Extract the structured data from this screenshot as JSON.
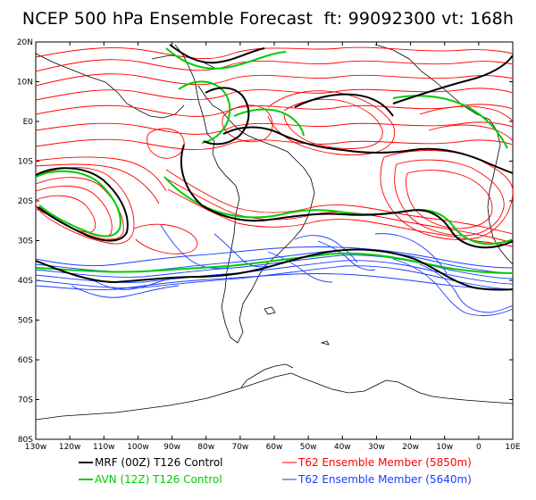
{
  "title": "NCEP 500 hPa Ensemble Forecast  ft: 99092300 vt: 168h",
  "latitude_labels": [
    "20N",
    "10N",
    "E0",
    "10S",
    "20S",
    "30S",
    "40S",
    "50S",
    "60S",
    "70S",
    "80S"
  ],
  "longitude_labels": [
    "130w",
    "120w",
    "110w",
    "100w",
    "90w",
    "80w",
    "70w",
    "60w",
    "50w",
    "40w",
    "30w",
    "20w",
    "10w",
    "0",
    "10E"
  ],
  "legend": [
    {
      "label": "MRF (00Z) T126 Control",
      "color": "#000000"
    },
    {
      "label": "AVN (12Z) T126 Control",
      "color": "#00cc00"
    },
    {
      "label": "T62 Ensemble Member (5850m)",
      "color": "#ff0000"
    },
    {
      "label": "T62 Ensemble Member (5640m)",
      "color": "#1a3cff"
    }
  ],
  "colors": {
    "mrf": "#000000",
    "avn": "#00cc00",
    "ens5850": "#ff0000",
    "ens5640": "#1a3cff",
    "coast": "#000000"
  }
}
